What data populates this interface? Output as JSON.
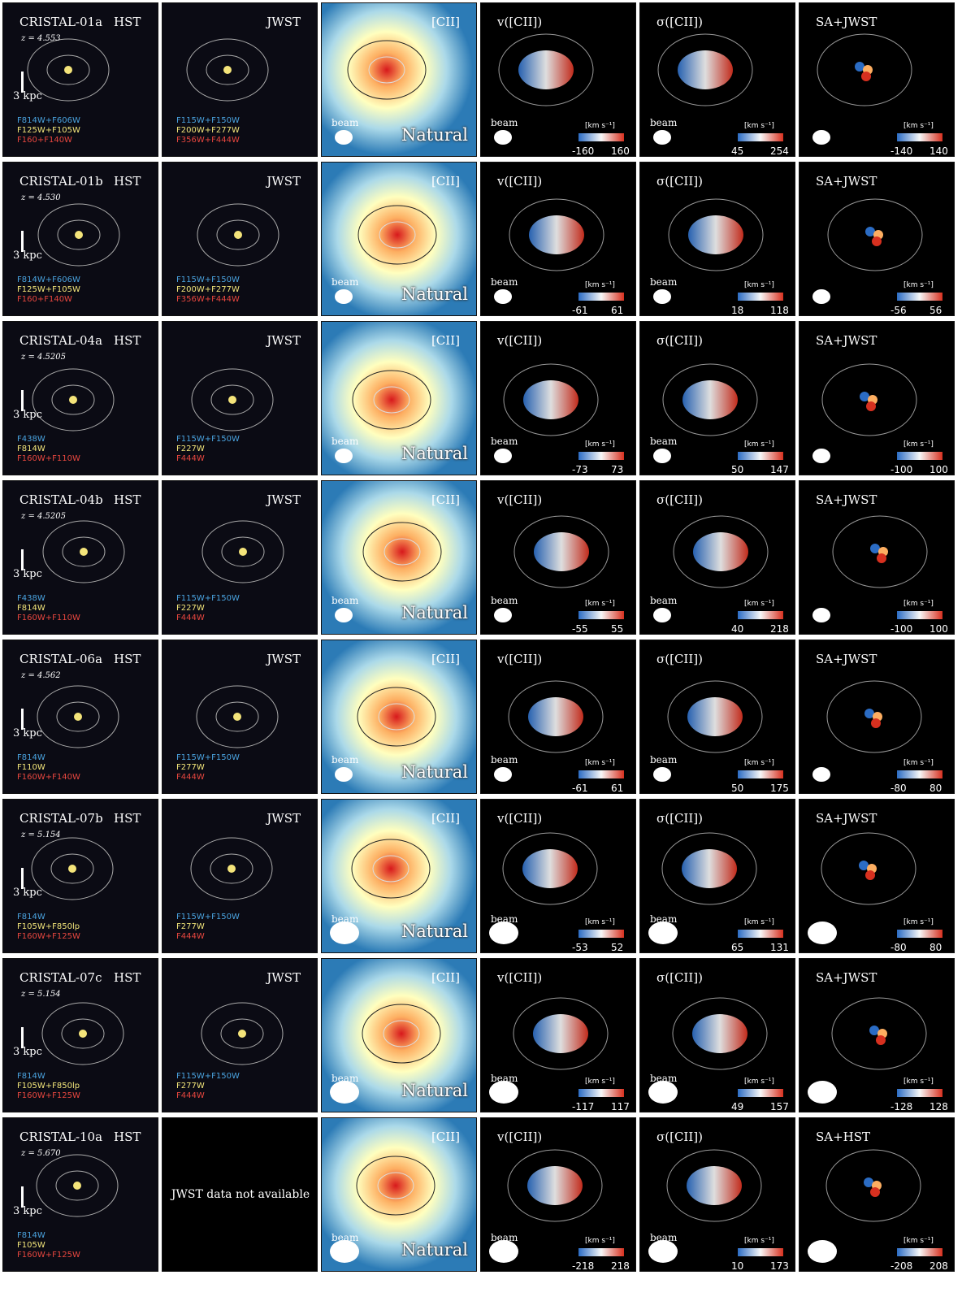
{
  "colorbar_unit": "[km s⁻¹]",
  "beam_label": "beam",
  "natural_label": "Natural",
  "cii_label": "[CII]",
  "vel_label": "v([CII])",
  "sig_label": "σ([CII])",
  "hst_label": "HST",
  "jwst_label": "JWST",
  "scalebar_label": "3 kpc",
  "colors": {
    "filter_blue": "#4aa3df",
    "filter_yellow": "#f3e67a",
    "filter_red": "#e8473f"
  },
  "rows": [
    {
      "name": "CRISTAL-01a",
      "z": "z = 4.553",
      "hst_filters": [
        "F814W+F606W",
        "F125W+F105W",
        "F160+F140W"
      ],
      "jwst_filters": [
        "F115W+F150W",
        "F200W+F277W",
        "F356W+F444W"
      ],
      "last_label": "SA+JWST",
      "vel_range": [
        "-160",
        "160"
      ],
      "sig_range": [
        "45",
        "254"
      ],
      "sa_range": [
        "-140",
        "140"
      ]
    },
    {
      "name": "CRISTAL-01b",
      "z": "z = 4.530",
      "hst_filters": [
        "F814W+F606W",
        "F125W+F105W",
        "F160+F140W"
      ],
      "jwst_filters": [
        "F115W+F150W",
        "F200W+F277W",
        "F356W+F444W"
      ],
      "last_label": "SA+JWST",
      "vel_range": [
        "-61",
        "61"
      ],
      "sig_range": [
        "18",
        "118"
      ],
      "sa_range": [
        "-56",
        "56"
      ]
    },
    {
      "name": "CRISTAL-04a",
      "z": "z = 4.5205",
      "hst_filters": [
        "F438W",
        "F814W",
        "F160W+F110W"
      ],
      "jwst_filters": [
        "F115W+F150W",
        "F227W",
        "F444W"
      ],
      "last_label": "SA+JWST",
      "vel_range": [
        "-73",
        "73"
      ],
      "sig_range": [
        "50",
        "147"
      ],
      "sa_range": [
        "-100",
        "100"
      ]
    },
    {
      "name": "CRISTAL-04b",
      "z": "z = 4.5205",
      "hst_filters": [
        "F438W",
        "F814W",
        "F160W+F110W"
      ],
      "jwst_filters": [
        "F115W+F150W",
        "F227W",
        "F444W"
      ],
      "last_label": "SA+JWST",
      "vel_range": [
        "-55",
        "55"
      ],
      "sig_range": [
        "40",
        "218"
      ],
      "sa_range": [
        "-100",
        "100"
      ]
    },
    {
      "name": "CRISTAL-06a",
      "z": "z = 4.562",
      "hst_filters": [
        "F814W",
        "F110W",
        "F160W+F140W"
      ],
      "jwst_filters": [
        "F115W+F150W",
        "F277W",
        "F444W"
      ],
      "last_label": "SA+JWST",
      "vel_range": [
        "-61",
        "61"
      ],
      "sig_range": [
        "50",
        "175"
      ],
      "sa_range": [
        "-80",
        "80"
      ]
    },
    {
      "name": "CRISTAL-07b",
      "z": "z = 5.154",
      "hst_filters": [
        "F814W",
        "F105W+F850lp",
        "F160W+F125W"
      ],
      "jwst_filters": [
        "F115W+F150W",
        "F277W",
        "F444W"
      ],
      "last_label": "SA+JWST",
      "vel_range": [
        "-53",
        "52"
      ],
      "sig_range": [
        "65",
        "131"
      ],
      "sa_range": [
        "-80",
        "80"
      ]
    },
    {
      "name": "CRISTAL-07c",
      "z": "z = 5.154",
      "hst_filters": [
        "F814W",
        "F105W+F850lp",
        "F160W+F125W"
      ],
      "jwst_filters": [
        "F115W+F150W",
        "F277W",
        "F444W"
      ],
      "last_label": "SA+JWST",
      "vel_range": [
        "-117",
        "117"
      ],
      "sig_range": [
        "49",
        "157"
      ],
      "sa_range": [
        "-128",
        "128"
      ]
    },
    {
      "name": "CRISTAL-10a",
      "z": "z = 5.670",
      "hst_filters": [
        "F814W",
        "F105W",
        "F160W+F125W"
      ],
      "jwst_filters": [],
      "jwst_na": "JWST data not available",
      "last_label": "SA+HST",
      "vel_range": [
        "-218",
        "218"
      ],
      "sig_range": [
        "10",
        "173"
      ],
      "sa_range": [
        "-208",
        "208"
      ]
    }
  ]
}
